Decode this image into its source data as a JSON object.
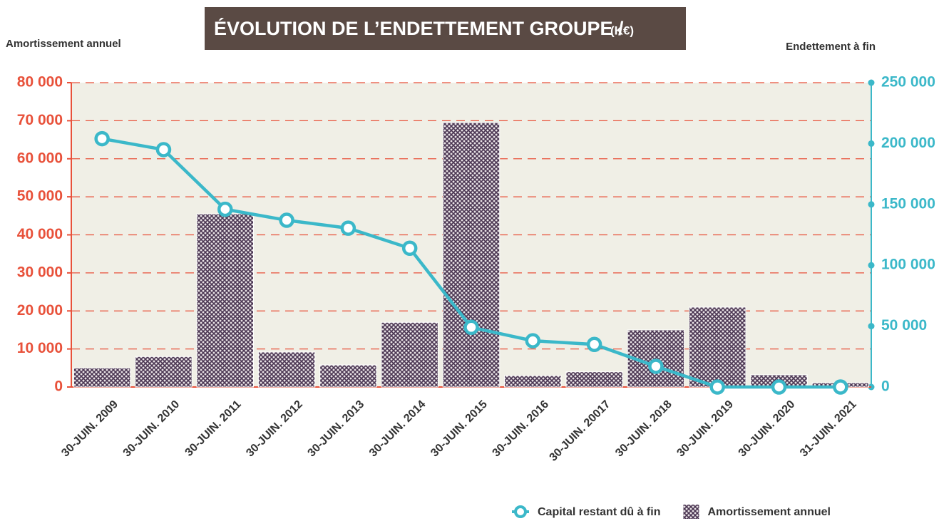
{
  "chart_data": {
    "type": "combo",
    "title": "ÉVOLUTION DE L’ENDETTEMENT GROUPE /",
    "title_unit": "(K€)",
    "y_label": "Amortissement annuel",
    "y2_label": "Endettement à fin",
    "categories": [
      "30-JUIN. 2009",
      "30-JUIN. 2010",
      "30-JUIN. 2011",
      "30-JUIN. 2012",
      "30-JUIN. 2013",
      "30-JUIN. 2014",
      "30-JUIN. 2015",
      "30-JUIN. 2016",
      "30-JUIN. 20017",
      "30-JUIN. 2018",
      "30-JUIN. 2019",
      "30-JUIN. 2020",
      "31-JUIN. 2021"
    ],
    "series": [
      {
        "name": "Capital restant dû à fin",
        "type": "line",
        "axis": "y2",
        "color": "#3bb8c9",
        "values": [
          204000,
          195000,
          146000,
          137000,
          130500,
          114000,
          49000,
          38000,
          35000,
          17000,
          0,
          0,
          0
        ]
      },
      {
        "name": "Amortissement annuel",
        "type": "bar",
        "axis": "y",
        "color": "#4a3552",
        "values": [
          5000,
          8000,
          45500,
          9200,
          5800,
          17000,
          69500,
          3000,
          4000,
          15000,
          21000,
          3200,
          1100
        ]
      }
    ],
    "ylim": [
      0,
      80000
    ],
    "yticks": [
      0,
      {
        "value": 10000,
        "label": "10 000"
      },
      {
        "value": 20000,
        "label": "20 000"
      },
      {
        "value": 30000,
        "label": "30 000"
      },
      {
        "value": 40000,
        "label": "40 000"
      },
      {
        "value": 50000,
        "label": "50 000"
      },
      {
        "value": 60000,
        "label": "60 000"
      },
      {
        "value": 70000,
        "label": "70 000"
      },
      {
        "value": 80000,
        "label": "80 000"
      }
    ],
    "y2lim": [
      0,
      250000
    ],
    "y2ticks": [
      0,
      {
        "value": 50000,
        "label": "50 000"
      },
      {
        "value": 100000,
        "label": "100 000"
      },
      {
        "value": 150000,
        "label": "150 000"
      },
      {
        "value": 200000,
        "label": "200 000"
      },
      {
        "value": 250000,
        "label": "250 000"
      }
    ],
    "y_color": "#e8513a",
    "grid": true
  }
}
